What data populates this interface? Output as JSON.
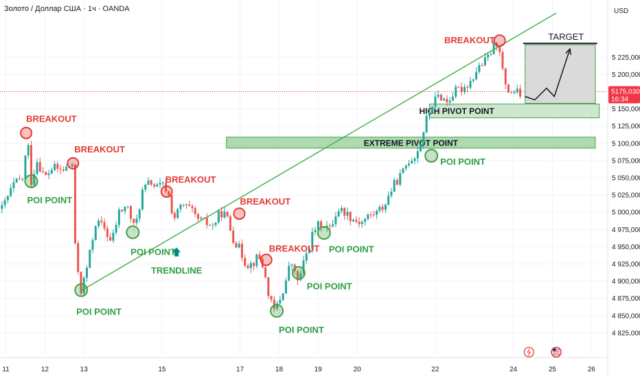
{
  "header": {
    "symbol_title": "Золото / Доллар США · 1ч · OANDA",
    "currency": "USD"
  },
  "price_label": {
    "value": "5175,030",
    "countdown": "16:34"
  },
  "chart_data": {
    "type": "candlestick",
    "title": "Золото / Доллар США · 1ч · OANDA",
    "currency_label": "USD",
    "y_axis_position": "right",
    "grid": true,
    "ylim": [
      4810,
      5290
    ],
    "y_ticks": [
      4825,
      4850,
      4875,
      4900,
      4925,
      4950,
      4975,
      5000,
      5025,
      5050,
      5075,
      5100,
      5125,
      5150,
      5175,
      5200,
      5225
    ],
    "y_tick_labels": [
      "4 825,000",
      "4 850,000",
      "4 875,000",
      "4 900,000",
      "4 925,000",
      "4 950,000",
      "4 975,000",
      "5 000,000",
      "5 025,000",
      "5 050,000",
      "5 075,000",
      "5 100,000",
      "5 125,000",
      "5 150,000",
      "",
      "5 200,000",
      "5 225,000"
    ],
    "x_range": [
      10.85,
      26.4
    ],
    "x_ticks": [
      11,
      12,
      13,
      15,
      17,
      18,
      19,
      20,
      22,
      24,
      25,
      26
    ],
    "x_tick_labels": [
      "11",
      "12",
      "13",
      "15",
      "17",
      "18",
      "19",
      "20",
      "22",
      "24",
      "25",
      "26"
    ],
    "price_path": [
      [
        10.9,
        5005
      ],
      [
        11.2,
        5040
      ],
      [
        11.45,
        5050
      ],
      [
        11.55,
        5110
      ],
      [
        11.65,
        5045
      ],
      [
        11.8,
        5075
      ],
      [
        12.0,
        5050
      ],
      [
        12.2,
        5065
      ],
      [
        12.45,
        5060
      ],
      [
        12.7,
        5070
      ],
      [
        12.75,
        4960
      ],
      [
        12.85,
        4915
      ],
      [
        12.93,
        4885
      ],
      [
        13.1,
        4925
      ],
      [
        13.3,
        4985
      ],
      [
        13.5,
        4980
      ],
      [
        13.7,
        4955
      ],
      [
        13.9,
        5000
      ],
      [
        14.1,
        5010
      ],
      [
        14.3,
        4975
      ],
      [
        14.5,
        5030
      ],
      [
        14.7,
        5045
      ],
      [
        14.85,
        5035
      ],
      [
        15.0,
        5040
      ],
      [
        15.15,
        5030
      ],
      [
        15.3,
        4990
      ],
      [
        15.5,
        5010
      ],
      [
        15.7,
        5005
      ],
      [
        15.9,
        4990
      ],
      [
        16.1,
        4985
      ],
      [
        16.3,
        4980
      ],
      [
        16.5,
        5000
      ],
      [
        16.65,
        4995
      ],
      [
        16.8,
        4965
      ],
      [
        17.0,
        4945
      ],
      [
        17.15,
        4925
      ],
      [
        17.3,
        4925
      ],
      [
        17.45,
        4935
      ],
      [
        17.55,
        4930
      ],
      [
        17.7,
        4890
      ],
      [
        17.85,
        4855
      ],
      [
        18.0,
        4870
      ],
      [
        18.15,
        4895
      ],
      [
        18.3,
        4930
      ],
      [
        18.45,
        4900
      ],
      [
        18.55,
        4910
      ],
      [
        18.7,
        4940
      ],
      [
        18.9,
        4975
      ],
      [
        19.1,
        4985
      ],
      [
        19.3,
        4975
      ],
      [
        19.5,
        5005
      ],
      [
        19.7,
        5000
      ],
      [
        19.9,
        4990
      ],
      [
        20.1,
        4985
      ],
      [
        20.3,
        4995
      ],
      [
        20.5,
        5000
      ],
      [
        20.7,
        5010
      ],
      [
        20.85,
        5030
      ],
      [
        21.0,
        5045
      ],
      [
        21.15,
        5055
      ],
      [
        21.3,
        5075
      ],
      [
        21.45,
        5080
      ],
      [
        21.6,
        5095
      ],
      [
        21.75,
        5130
      ],
      [
        21.9,
        5155
      ],
      [
        22.1,
        5170
      ],
      [
        22.3,
        5160
      ],
      [
        22.5,
        5175
      ],
      [
        22.7,
        5180
      ],
      [
        22.9,
        5190
      ],
      [
        23.1,
        5210
      ],
      [
        23.3,
        5220
      ],
      [
        23.5,
        5240
      ],
      [
        23.62,
        5250
      ],
      [
        23.7,
        5215
      ],
      [
        23.8,
        5180
      ],
      [
        23.9,
        5175
      ],
      [
        24.05,
        5175
      ],
      [
        24.2,
        5170
      ]
    ],
    "zones": [
      {
        "label": "HIGH PIVOT POINT",
        "x": [
          21.85,
          26.2
        ],
        "y": [
          5137,
          5157
        ]
      },
      {
        "label": "EXTREME PIVOT POINT",
        "x": [
          16.65,
          26.1
        ],
        "y": [
          5093,
          5109
        ]
      },
      {
        "label": "",
        "x": [
          24.3,
          26.1
        ],
        "y": [
          5158,
          5243
        ]
      }
    ],
    "trendline": {
      "from": [
        12.95,
        4887
      ],
      "to": [
        25.1,
        5289
      ]
    },
    "target": {
      "label": "TARGET",
      "line_x": [
        24.25,
        26.15
      ],
      "y": 5245
    },
    "projection_path": [
      [
        24.3,
        5168
      ],
      [
        24.55,
        5163
      ],
      [
        24.85,
        5180
      ],
      [
        25.05,
        5168
      ],
      [
        25.45,
        5237
      ]
    ],
    "current_price_y": 5175,
    "annotations": [
      {
        "label": "BREAKOUT",
        "x": 11.52,
        "y": 5115,
        "type": "breakout",
        "text_dx": 0,
        "text_dy": -16,
        "anchor": "start"
      },
      {
        "label": "POI POINT",
        "x": 11.65,
        "y": 5045,
        "type": "poi",
        "text_dx": -6,
        "text_dy": 32,
        "anchor": "start"
      },
      {
        "label": "BREAKOUT",
        "x": 12.72,
        "y": 5071,
        "type": "breakout",
        "text_dx": 2,
        "text_dy": -16,
        "anchor": "start"
      },
      {
        "label": "POI POINT",
        "x": 12.93,
        "y": 4887,
        "type": "poi",
        "text_dx": -7,
        "text_dy": 36,
        "anchor": "start"
      },
      {
        "label": "POI POINT",
        "x": 14.25,
        "y": 4971,
        "type": "poi",
        "text_dx": -3,
        "text_dy": 33,
        "anchor": "start"
      },
      {
        "label": "BREAKOUT",
        "x": 15.12,
        "y": 5030,
        "type": "breakout",
        "text_dx": -2,
        "text_dy": -13,
        "anchor": "start"
      },
      {
        "label": "BREAKOUT",
        "x": 16.98,
        "y": 4998,
        "type": "breakout",
        "text_dx": 1,
        "text_dy": -13,
        "anchor": "start"
      },
      {
        "label": "BREAKOUT",
        "x": 17.67,
        "y": 4931,
        "type": "breakout",
        "text_dx": 4,
        "text_dy": -12,
        "anchor": "start"
      },
      {
        "label": "POI POINT",
        "x": 17.94,
        "y": 4857,
        "type": "poi",
        "text_dx": 3,
        "text_dy": 32,
        "anchor": "start"
      },
      {
        "label": "POI POINT",
        "x": 18.5,
        "y": 4912,
        "type": "poi",
        "text_dx": 12,
        "text_dy": 24,
        "anchor": "start"
      },
      {
        "label": "POI POINT",
        "x": 19.15,
        "y": 4970,
        "type": "poi",
        "text_dx": 7,
        "text_dy": 28,
        "anchor": "start"
      },
      {
        "label": "POI POINT",
        "x": 21.9,
        "y": 5082,
        "type": "poi",
        "text_dx": 13,
        "text_dy": 13,
        "anchor": "start"
      },
      {
        "label": "BREAKOUT",
        "x": 23.65,
        "y": 5249,
        "type": "breakout",
        "text_dx": -7,
        "text_dy": 4,
        "anchor": "end"
      },
      {
        "label": "TRENDLINE",
        "x": 15.25,
        "y": 4938,
        "type": "trendline-label",
        "text_dx": 7,
        "text_dy": 27,
        "anchor": "middle"
      }
    ],
    "colors": {
      "bull": "#26a69a",
      "bear": "#ef5350",
      "breakout": "#e53935",
      "poi": "#43a047",
      "trendline": "#4caf50",
      "zone_fill": "#a5d6a7",
      "zone_border": "#43a047",
      "target_box": "#d6d6d6",
      "price_badge": "#f23645",
      "grid": "#f0f3fa"
    },
    "bottom_icons": [
      {
        "name": "lightning-event-icon",
        "x": 24.4
      },
      {
        "name": "us-flag-event-icon",
        "x": 25.1
      }
    ]
  }
}
